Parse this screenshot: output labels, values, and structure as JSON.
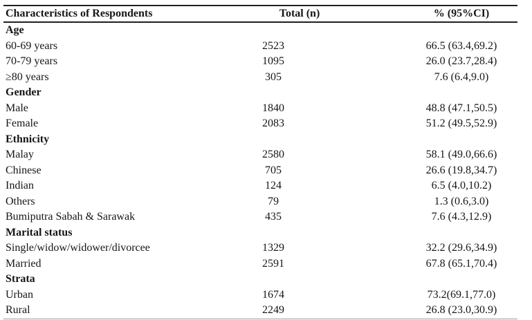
{
  "table": {
    "header": {
      "characteristics": "Characteristics of Respondents",
      "total": "Total (n)",
      "percent_ci": "% (95%CI)"
    },
    "sections": [
      {
        "title": "Age",
        "rows": [
          {
            "label": "60-69 years",
            "total": "2523",
            "percent_ci": "66.5 (63.4,69.2)"
          },
          {
            "label": "70-79 years",
            "total": "1095",
            "percent_ci": "26.0 (23.7,28.4)"
          },
          {
            "label": "≥80 years",
            "total": "305",
            "percent_ci": "7.6 (6.4,9.0)"
          }
        ]
      },
      {
        "title": "Gender",
        "rows": [
          {
            "label": "Male",
            "total": "1840",
            "percent_ci": "48.8 (47.1,50.5)"
          },
          {
            "label": "Female",
            "total": "2083",
            "percent_ci": "51.2 (49.5,52.9)"
          }
        ]
      },
      {
        "title": "Ethnicity",
        "rows": [
          {
            "label": "Malay",
            "total": "2580",
            "percent_ci": "58.1 (49.0,66.6)"
          },
          {
            "label": "Chinese",
            "total": "705",
            "percent_ci": "26.6 (19.8,34.7)"
          },
          {
            "label": "Indian",
            "total": "124",
            "percent_ci": "6.5 (4.0,10.2)"
          },
          {
            "label": "Others",
            "total": "79",
            "percent_ci": "1.3 (0.6,3.0)"
          },
          {
            "label": "Bumiputra Sabah & Sarawak",
            "total": "435",
            "percent_ci": "7.6 (4.3,12.9)"
          }
        ]
      },
      {
        "title": "Marital status",
        "rows": [
          {
            "label": "Single/widow/widower/divorcee",
            "total": "1329",
            "percent_ci": "32.2 (29.6,34.9)"
          },
          {
            "label": "Married",
            "total": "2591",
            "percent_ci": "67.8 (65.1,70.4)"
          }
        ]
      },
      {
        "title": "Strata",
        "rows": [
          {
            "label": "Urban",
            "total": "1674",
            "percent_ci": "73.2(69.1,77.0)"
          },
          {
            "label": "Rural",
            "total": "2249",
            "percent_ci": "26.8 (23.0,30.9)"
          }
        ]
      }
    ]
  },
  "colors": {
    "text": "#161616",
    "rule_dark": "#1f1f1f",
    "rule_light": "#9a9a9a",
    "background": "#ffffff"
  }
}
